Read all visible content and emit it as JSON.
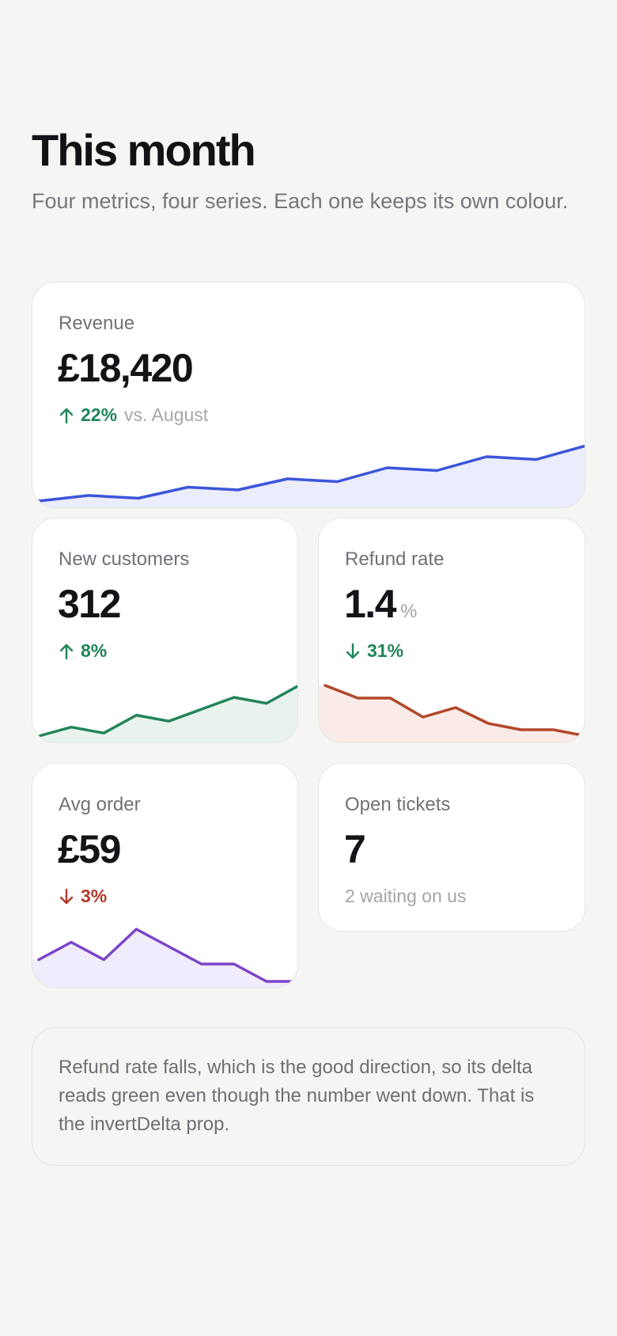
{
  "header": {
    "title": "This month",
    "subtitle": "Four metrics, four series. Each one keeps its own colour."
  },
  "cards": {
    "revenue": {
      "label": "Revenue",
      "value": "£18,420",
      "delta": "22%",
      "delta_direction": "up",
      "delta_tone": "good",
      "context": "vs. August",
      "color": "#3b55d9",
      "fill": "#ebecfc",
      "series": [
        12,
        13,
        12.5,
        14.5,
        14,
        16,
        15.5,
        18,
        17.5,
        20,
        19.5,
        22
      ]
    },
    "new_customers": {
      "label": "New customers",
      "value": "312",
      "delta": "8%",
      "delta_direction": "up",
      "delta_tone": "good",
      "color": "#23855a",
      "fill": "#e9f3ee",
      "series": [
        10,
        13,
        11,
        17,
        15,
        19,
        23,
        21,
        27
      ]
    },
    "refund_rate": {
      "label": "Refund rate",
      "value": "1.4",
      "unit": "%",
      "delta": "31%",
      "delta_direction": "down",
      "delta_tone": "good",
      "color": "#b2472a",
      "fill": "#f9ebe7",
      "series": [
        2.3,
        2.1,
        2.1,
        1.8,
        1.95,
        1.7,
        1.6,
        1.6,
        1.5
      ]
    },
    "avg_order": {
      "label": "Avg order",
      "value": "£59",
      "delta": "3%",
      "delta_direction": "down",
      "delta_tone": "bad",
      "color": "#7b45c9",
      "fill": "#f1ecfb",
      "series": [
        62,
        66,
        62,
        69,
        65,
        61,
        61,
        57,
        57
      ]
    },
    "open_tickets": {
      "label": "Open tickets",
      "value": "7",
      "sub": "2 waiting on us"
    }
  },
  "note": {
    "text": "Refund rate falls, which is the good direction, so its delta reads green even though the number went down. That is the invertDelta prop."
  }
}
